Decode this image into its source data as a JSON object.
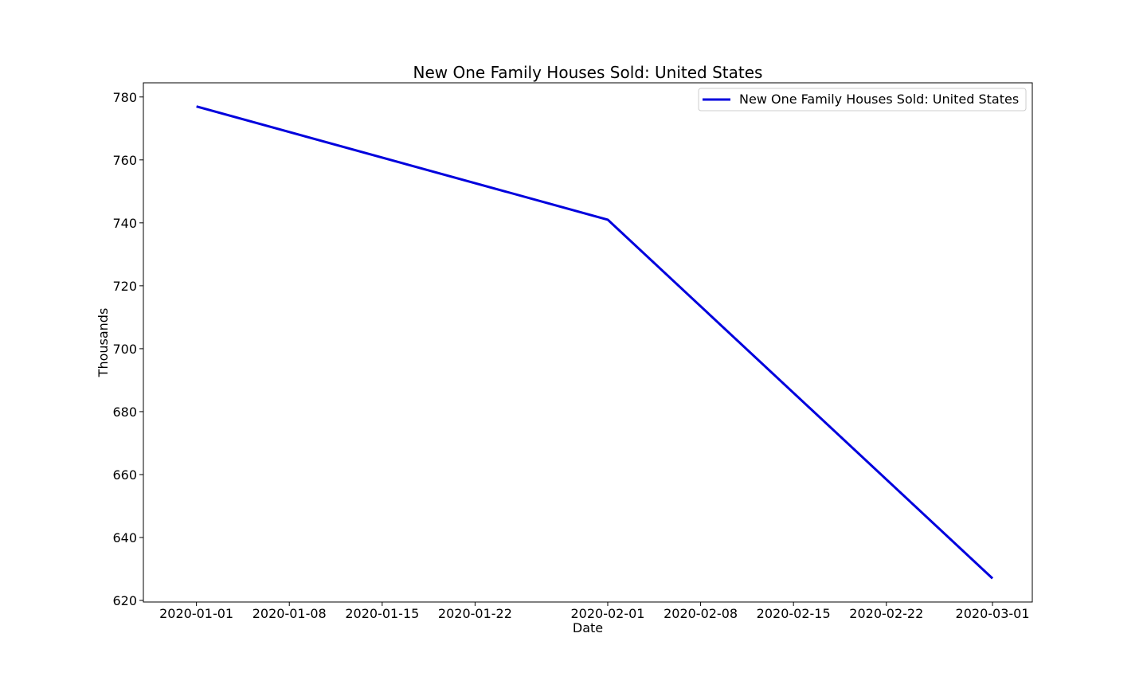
{
  "chart_data": {
    "type": "line",
    "title": "New One Family Houses Sold: United States",
    "xlabel": "Date",
    "ylabel": "Thousands",
    "x_tick_labels": [
      "2020-01-01",
      "2020-01-08",
      "2020-01-15",
      "2020-01-22",
      "2020-02-01",
      "2020-02-08",
      "2020-02-15",
      "2020-02-22",
      "2020-03-01"
    ],
    "y_tick_labels": [
      620,
      640,
      660,
      680,
      700,
      720,
      740,
      760,
      780
    ],
    "xlim": [
      "2019-12-28",
      "2020-03-04"
    ],
    "ylim": [
      619.5,
      784.5
    ],
    "grid": false,
    "legend_position": "top-right",
    "series": [
      {
        "name": "New One Family Houses Sold: United States",
        "color": "#0000dd",
        "x": [
          "2020-01-01",
          "2020-02-01",
          "2020-03-01"
        ],
        "y": [
          777,
          741,
          627
        ]
      }
    ]
  }
}
